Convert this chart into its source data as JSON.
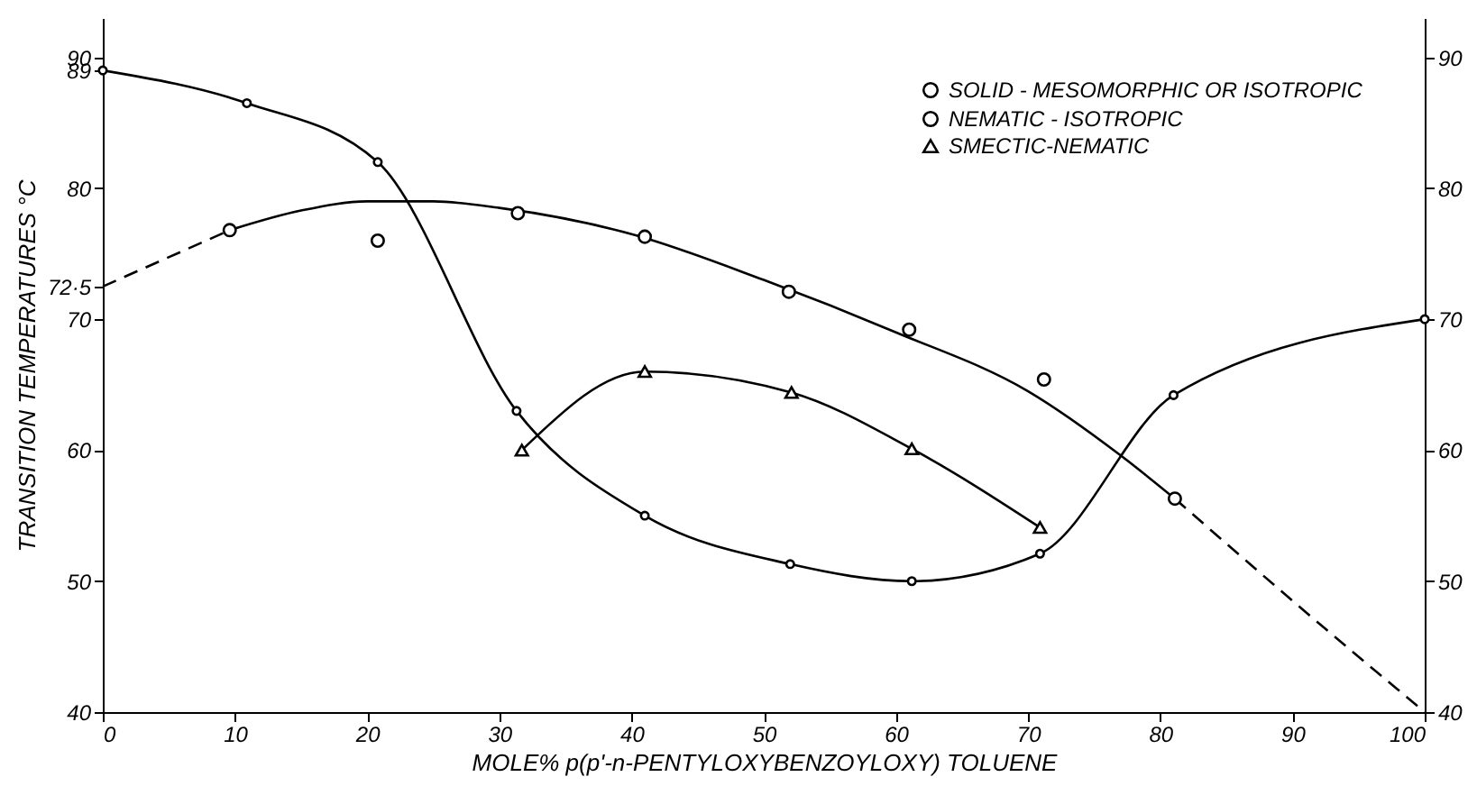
{
  "chart_data": {
    "type": "line",
    "xlabel": "MOLE% p(p'-n-PENTYLOXYBENZOYLOXY) TOLUENE",
    "ylabel": "TRANSITION TEMPERATURES °C",
    "xlim": [
      0,
      100
    ],
    "xticks": [
      0,
      10,
      20,
      30,
      40,
      50,
      60,
      70,
      80,
      90,
      100
    ],
    "ylim": [
      40,
      93
    ],
    "yticks": [
      40,
      50,
      60,
      70,
      {
        "value": 72.5,
        "label": "72·5"
      },
      80,
      89,
      90
    ],
    "y2lim": [
      40,
      93
    ],
    "y2ticks": [
      40,
      50,
      60,
      70,
      80,
      90
    ],
    "grid": false,
    "legend": "top right",
    "series": [
      {
        "name": "SOLID - MESOMORPHIC OR ISOTROPIC",
        "marker": "circle",
        "line_style": "solid",
        "color": "#000000",
        "x": [
          0,
          10.9,
          20.8,
          31.3,
          41,
          52,
          61.2,
          70.9,
          81,
          100
        ],
        "values": [
          89,
          86.5,
          82,
          63,
          55,
          51.3,
          50,
          52.1,
          64.2,
          70
        ]
      },
      {
        "name": "NEMATIC - ISOTROPIC",
        "type": "scatter",
        "marker": "circle",
        "color": "#000000",
        "x": [
          9.6,
          20.8,
          31.4,
          41,
          51.9,
          61,
          71.2,
          81.1
        ],
        "values": [
          76.8,
          76,
          78.1,
          76.3,
          72.1,
          69.2,
          65.4,
          56.3
        ]
      },
      {
        "type": "line",
        "marker": "none",
        "line_style": "solid",
        "color": "#000000",
        "x": [
          9.6,
          15,
          20,
          25,
          30,
          40,
          50,
          60,
          70,
          77,
          81.1
        ],
        "values": [
          76.8,
          78.3,
          79,
          79,
          78.5,
          76.5,
          73,
          69,
          64.5,
          59.6,
          56.3
        ]
      },
      {
        "type": "line",
        "marker": "none",
        "line_style": "dashed",
        "color": "#000000",
        "x": [
          0,
          9.6,
          50,
          81.1,
          90,
          100
        ],
        "values": [
          72.5,
          76.8,
          null,
          56.3,
          48.5,
          40
        ]
      },
      {
        "name": "SMECTIC-NEMATIC",
        "type": "line",
        "marker": "triangle",
        "line_style": "solid",
        "color": "#000000",
        "x": [
          31.7,
          41,
          52.1,
          61.2,
          70.9
        ],
        "values": [
          60,
          66,
          64.4,
          60.1,
          54.1
        ]
      }
    ]
  }
}
